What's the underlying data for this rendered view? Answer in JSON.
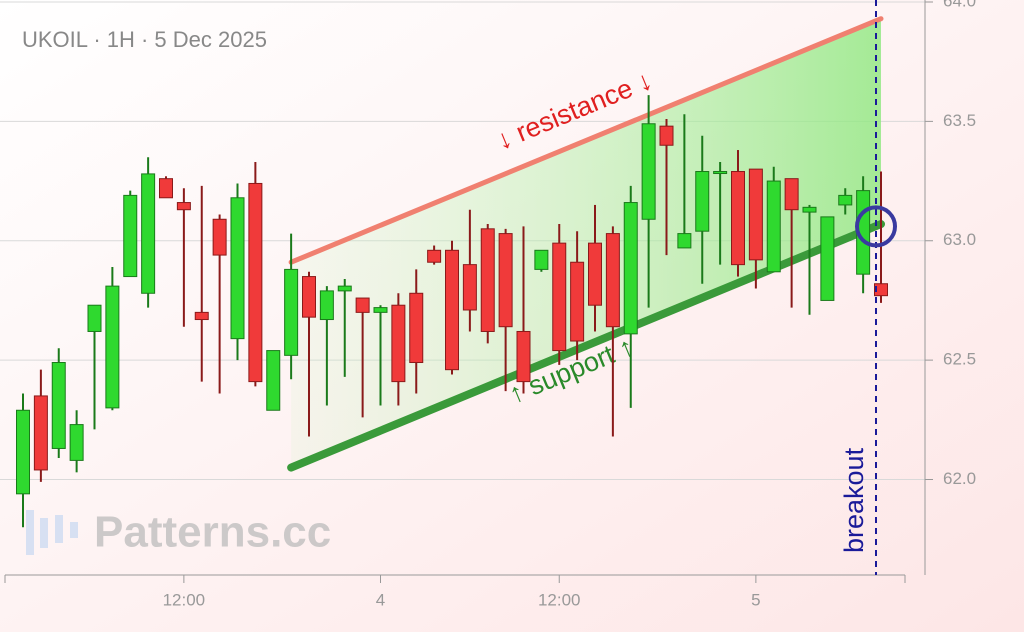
{
  "chart_data": {
    "type": "candlestick",
    "title": "UKOIL · 1H · 5 Dec 2025",
    "watermark": "Patterns.cc",
    "categories": [
      null,
      null,
      null,
      null,
      null,
      null,
      null,
      null,
      null,
      "12:00",
      null,
      null,
      null,
      null,
      null,
      null,
      null,
      null,
      null,
      null,
      "4",
      null,
      null,
      null,
      null,
      null,
      null,
      null,
      null,
      null,
      "12:00",
      null,
      null,
      null,
      null,
      null,
      null,
      null,
      null,
      null,
      null,
      "5",
      null,
      null,
      null,
      null,
      null,
      null,
      null
    ],
    "open": [
      61.94,
      62.35,
      62.13,
      62.08,
      62.62,
      62.3,
      62.85,
      62.78,
      63.26,
      63.16,
      62.7,
      63.09,
      62.59,
      63.24,
      62.29,
      62.52,
      62.85,
      62.67,
      62.79,
      62.76,
      62.7,
      62.73,
      62.78,
      62.96,
      62.96,
      62.9,
      63.05,
      63.03,
      62.62,
      62.88,
      62.99,
      62.91,
      62.99,
      63.03,
      62.61,
      63.09,
      63.48,
      62.97,
      63.04,
      63.29,
      63.29,
      63.3,
      62.87,
      63.26,
      63.12,
      62.75,
      63.15,
      62.86,
      62.82
    ],
    "high": [
      62.36,
      62.46,
      62.55,
      62.29,
      62.73,
      62.89,
      63.21,
      63.35,
      63.27,
      63.22,
      63.23,
      63.11,
      63.24,
      63.33,
      62.54,
      63.03,
      62.87,
      62.81,
      62.84,
      62.76,
      62.73,
      62.78,
      62.88,
      62.98,
      63.0,
      63.13,
      63.07,
      63.05,
      63.06,
      62.96,
      63.07,
      63.04,
      63.15,
      63.06,
      63.23,
      63.61,
      63.51,
      63.53,
      63.44,
      63.33,
      63.38,
      63.3,
      63.31,
      63.26,
      63.15,
      63.1,
      63.22,
      63.27,
      63.29
    ],
    "low": [
      61.8,
      61.99,
      62.09,
      62.03,
      62.21,
      62.29,
      62.85,
      62.72,
      63.18,
      62.64,
      62.41,
      62.36,
      62.5,
      62.39,
      62.29,
      62.42,
      62.18,
      62.31,
      62.43,
      62.26,
      62.31,
      62.31,
      62.36,
      62.9,
      62.44,
      62.62,
      62.57,
      62.37,
      62.36,
      62.87,
      62.48,
      62.5,
      62.62,
      62.18,
      62.3,
      62.72,
      62.94,
      62.97,
      62.82,
      62.9,
      62.85,
      62.8,
      62.87,
      62.72,
      62.69,
      62.75,
      63.11,
      62.78,
      62.74
    ],
    "close": [
      62.29,
      62.04,
      62.49,
      62.23,
      62.73,
      62.81,
      63.19,
      63.28,
      63.18,
      63.13,
      62.67,
      62.94,
      63.18,
      62.41,
      62.54,
      62.88,
      62.68,
      62.79,
      62.81,
      62.7,
      62.72,
      62.41,
      62.49,
      62.91,
      62.46,
      62.71,
      62.62,
      62.64,
      62.41,
      62.96,
      62.54,
      62.58,
      62.73,
      62.64,
      63.16,
      63.49,
      63.4,
      63.03,
      63.29,
      63.29,
      62.9,
      62.92,
      63.25,
      63.13,
      63.14,
      63.1,
      63.19,
      63.21,
      62.77
    ],
    "up_color": "#2fd92f",
    "down_color": "#f03a3a",
    "ylim": [
      61.6,
      64.0
    ],
    "yticks": [
      {
        "value": 62.0,
        "label": "62.0"
      },
      {
        "value": 62.5,
        "label": "62.5"
      },
      {
        "value": 63.0,
        "label": "63.0"
      },
      {
        "value": 63.5,
        "label": "63.5"
      },
      {
        "value": 64.0,
        "label": "64.0"
      }
    ],
    "grid": true,
    "resistance": {
      "label": "↓ resistance ↓",
      "color": "#f08070",
      "x": [
        15,
        48
      ],
      "values": [
        62.91,
        63.93
      ]
    },
    "support": {
      "label": "↑ support ↑",
      "color": "#3a9a3a",
      "x": [
        15,
        48
      ],
      "values": [
        62.05,
        63.07
      ]
    },
    "breakout": {
      "label": "breakout",
      "color": "#1a1a99",
      "x": 48,
      "value": 63.06
    }
  }
}
